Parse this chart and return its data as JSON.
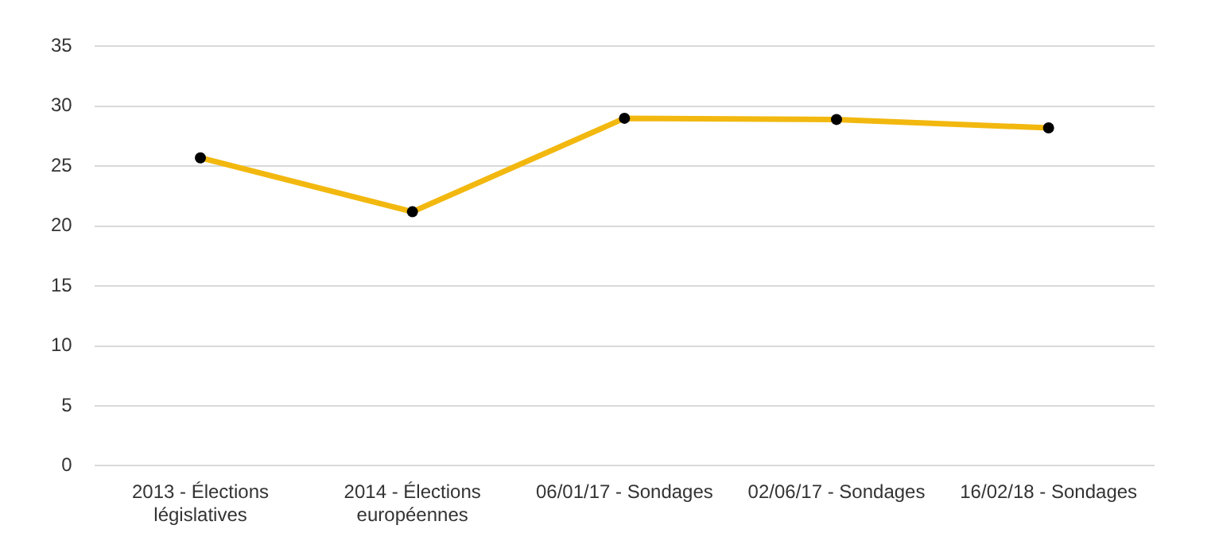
{
  "chart_data": {
    "type": "line",
    "categories": [
      "2013 - Élections législatives",
      "2014 - Élections européennes",
      "06/01/17 - Sondages",
      "02/06/17 - Sondages",
      "16/02/18 - Sondages"
    ],
    "series": [
      {
        "color": "#f2b80f",
        "values": [
          25.7,
          21.2,
          29.0,
          28.9,
          28.2
        ]
      }
    ],
    "ylim": [
      0,
      35
    ],
    "yticks": [
      0,
      5,
      10,
      15,
      20,
      25,
      30,
      35
    ],
    "grid": "y",
    "legend": false,
    "marker": "circle",
    "line_style": "solid"
  }
}
